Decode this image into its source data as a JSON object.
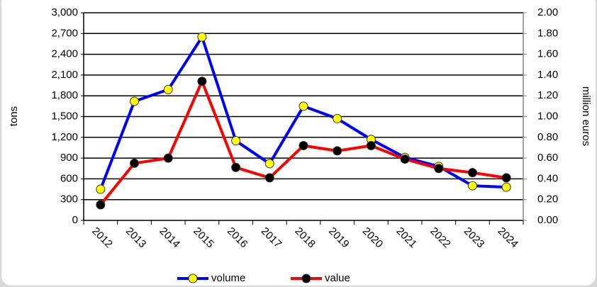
{
  "chart_data": {
    "type": "line",
    "categories": [
      "2012",
      "2013",
      "2014",
      "2015",
      "2016",
      "2017",
      "2018",
      "2019",
      "2020",
      "2021",
      "2022",
      "2023",
      "2024"
    ],
    "series": [
      {
        "name": "volume",
        "color": "#0000ff",
        "marker_color": "#ffff00",
        "values": [
          450,
          1720,
          1890,
          2650,
          1150,
          820,
          1650,
          1470,
          1170,
          910,
          780,
          500,
          480
        ]
      },
      {
        "name": "value",
        "color": "#ff0000",
        "marker_color": "#000000",
        "axis": "y2",
        "values": [
          0.15,
          0.55,
          0.6,
          1.34,
          0.51,
          0.41,
          0.72,
          0.67,
          0.72,
          0.59,
          0.5,
          0.46,
          0.41
        ]
      }
    ],
    "ylabel": "tons",
    "y2label": "million euros",
    "ylim": [
      0,
      3000
    ],
    "yticks": [
      0,
      300,
      600,
      900,
      {
        "value": 1200,
        "label": "1,200"
      },
      {
        "value": 1500,
        "label": "1,500"
      },
      {
        "value": 1800,
        "label": "1,800"
      },
      {
        "value": 2100,
        "label": "2,100"
      },
      {
        "value": 2400,
        "label": "2,400"
      },
      {
        "value": 2700,
        "label": "2,700"
      },
      {
        "value": 3000,
        "label": "3,000"
      }
    ],
    "y2lim": [
      0,
      2
    ],
    "y2ticks": [
      {
        "value": 0,
        "label": "0.00"
      },
      {
        "value": 0.2,
        "label": "0.20"
      },
      {
        "value": 0.4,
        "label": "0.40"
      },
      {
        "value": 0.6,
        "label": "0.60"
      },
      {
        "value": 0.8,
        "label": "0.80"
      },
      {
        "value": 1,
        "label": "1.00"
      },
      {
        "value": 1.2,
        "label": "1.20"
      },
      {
        "value": 1.4,
        "label": "1.40"
      },
      {
        "value": 1.6,
        "label": "1.60"
      },
      {
        "value": 1.8,
        "label": "1.80"
      },
      {
        "value": 2,
        "label": "2.00"
      }
    ],
    "grid": true,
    "legend": "bottom"
  }
}
